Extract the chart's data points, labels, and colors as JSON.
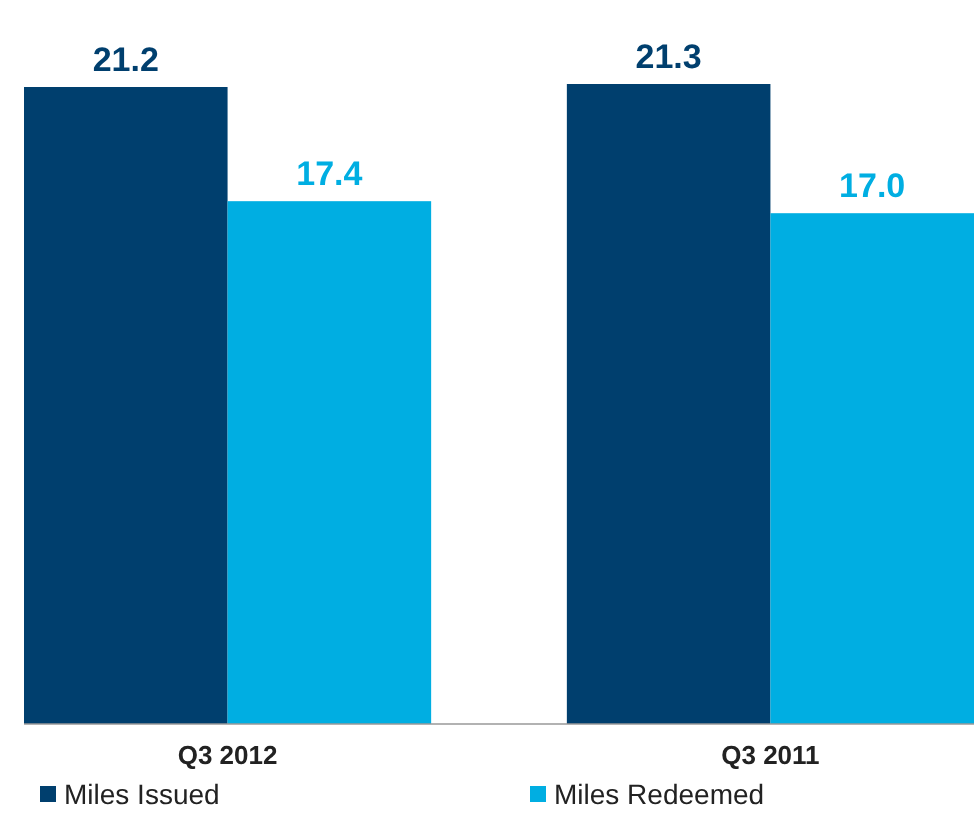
{
  "chart_data": {
    "type": "bar",
    "categories": [
      "Q3 2012",
      "Q3 2011"
    ],
    "series": [
      {
        "name": "Miles Issued",
        "color": "#003f6e",
        "values": [
          21.2,
          21.3
        ],
        "value_labels": [
          "21.2",
          "21.3"
        ]
      },
      {
        "name": "Miles Redeemed",
        "color": "#00aee2",
        "values": [
          17.4,
          17.0
        ],
        "value_labels": [
          "17.4",
          "17.0"
        ]
      }
    ],
    "legend": "bottom",
    "grid": false
  }
}
